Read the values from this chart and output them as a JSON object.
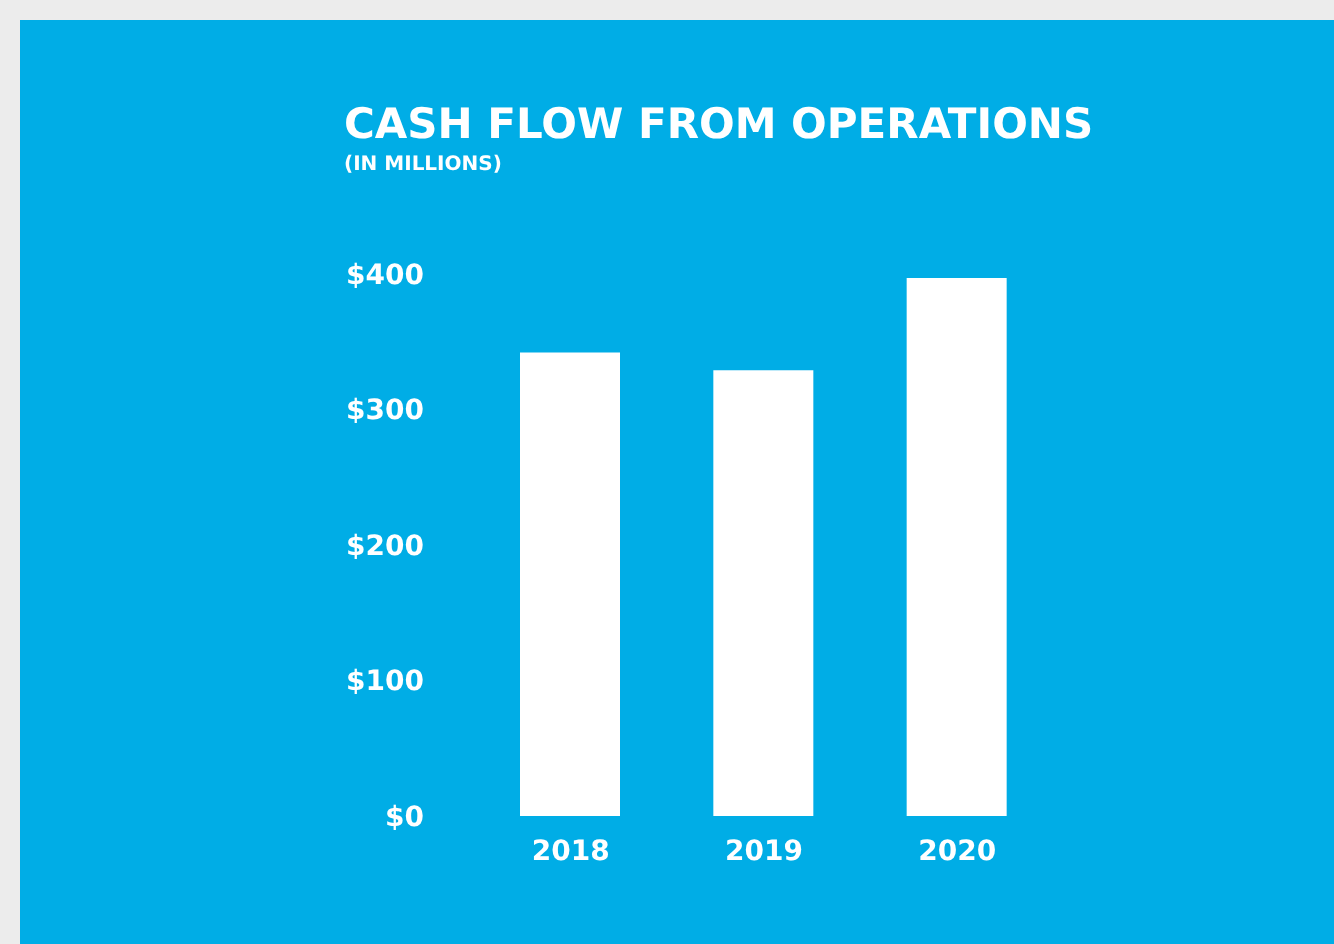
{
  "chart_data": {
    "type": "bar",
    "title": "CASH FLOW FROM OPERATIONS",
    "subtitle": "(IN MILLIONS)",
    "categories": [
      "2018",
      "2019",
      "2020"
    ],
    "values": [
      342,
      329,
      397
    ],
    "color": "#ffffff",
    "ylim": [
      0,
      400
    ],
    "yticks": [
      {
        "value": 0,
        "label": "$0"
      },
      {
        "value": 100,
        "label": "$100"
      },
      {
        "value": 200,
        "label": "$200"
      },
      {
        "value": 300,
        "label": "$300"
      },
      {
        "value": 400,
        "label": "$400"
      }
    ]
  }
}
